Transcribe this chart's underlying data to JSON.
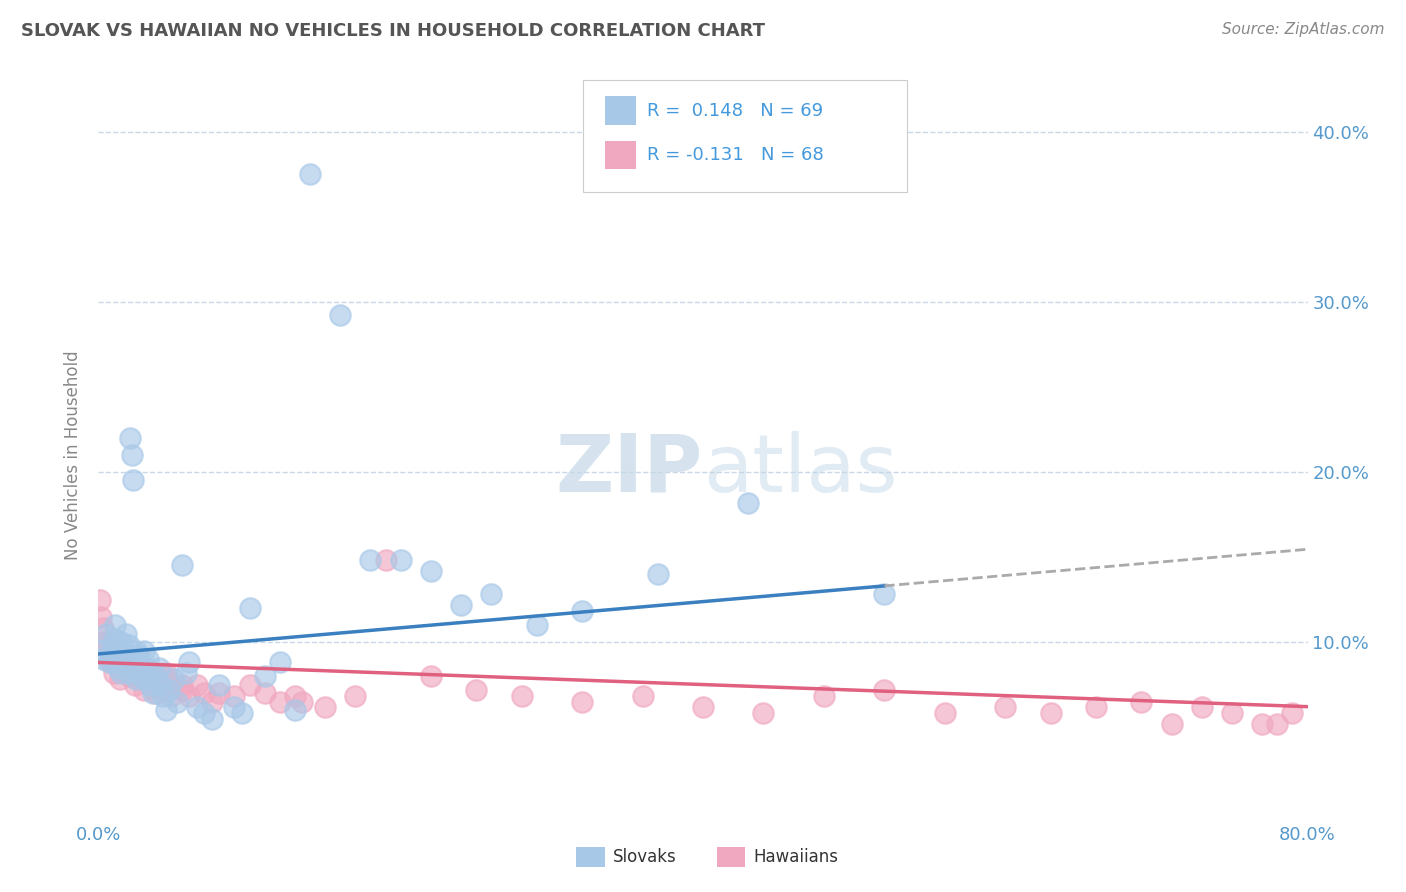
{
  "title": "SLOVAK VS HAWAIIAN NO VEHICLES IN HOUSEHOLD CORRELATION CHART",
  "source": "Source: ZipAtlas.com",
  "ylabel": "No Vehicles in Household",
  "xlim": [
    0.0,
    0.8
  ],
  "ylim": [
    -0.005,
    0.425
  ],
  "yticks": [
    0.0,
    0.1,
    0.2,
    0.3,
    0.4
  ],
  "yticklabels_right": [
    "",
    "10.0%",
    "20.0%",
    "30.0%",
    "40.0%"
  ],
  "xtick_left_label": "0.0%",
  "xtick_right_label": "80.0%",
  "slovak_R": 0.148,
  "slovak_N": 69,
  "hawaiian_R": -0.131,
  "hawaiian_N": 68,
  "blue_scatter_color": "#A8C8E8",
  "pink_scatter_color": "#F0A8C0",
  "blue_line_color": "#3A7FBF",
  "pink_line_color": "#E06080",
  "dashed_line_color": "#AAAAAA",
  "background_color": "#FFFFFF",
  "grid_color": "#C8D8E8",
  "title_color": "#555555",
  "axis_label_color": "#888888",
  "tick_label_color": "#5599CC",
  "legend_text_dark": "#333333",
  "legend_R_color": "#4499DD",
  "watermark_color": "#C5D8E8",
  "slovak_x": [
    0.002,
    0.003,
    0.005,
    0.007,
    0.008,
    0.009,
    0.01,
    0.01,
    0.011,
    0.012,
    0.013,
    0.014,
    0.015,
    0.015,
    0.016,
    0.017,
    0.018,
    0.019,
    0.02,
    0.02,
    0.021,
    0.022,
    0.023,
    0.024,
    0.025,
    0.025,
    0.026,
    0.027,
    0.028,
    0.03,
    0.03,
    0.032,
    0.033,
    0.034,
    0.035,
    0.036,
    0.038,
    0.04,
    0.041,
    0.043,
    0.045,
    0.047,
    0.05,
    0.052,
    0.055,
    0.058,
    0.06,
    0.065,
    0.07,
    0.075,
    0.08,
    0.09,
    0.095,
    0.1,
    0.11,
    0.12,
    0.13,
    0.14,
    0.16,
    0.18,
    0.2,
    0.22,
    0.24,
    0.26,
    0.29,
    0.32,
    0.37,
    0.43,
    0.52
  ],
  "slovak_y": [
    0.095,
    0.09,
    0.105,
    0.088,
    0.092,
    0.098,
    0.102,
    0.088,
    0.11,
    0.095,
    0.085,
    0.092,
    0.1,
    0.082,
    0.09,
    0.095,
    0.105,
    0.088,
    0.098,
    0.082,
    0.22,
    0.21,
    0.195,
    0.085,
    0.095,
    0.078,
    0.088,
    0.092,
    0.08,
    0.095,
    0.078,
    0.085,
    0.09,
    0.075,
    0.082,
    0.07,
    0.08,
    0.085,
    0.075,
    0.068,
    0.06,
    0.072,
    0.078,
    0.065,
    0.145,
    0.082,
    0.088,
    0.062,
    0.058,
    0.055,
    0.075,
    0.062,
    0.058,
    0.12,
    0.08,
    0.088,
    0.06,
    0.375,
    0.292,
    0.148,
    0.148,
    0.142,
    0.122,
    0.128,
    0.11,
    0.118,
    0.14,
    0.182,
    0.128
  ],
  "hawaiian_x": [
    0.001,
    0.002,
    0.004,
    0.006,
    0.008,
    0.01,
    0.012,
    0.014,
    0.016,
    0.018,
    0.02,
    0.022,
    0.024,
    0.026,
    0.028,
    0.03,
    0.032,
    0.034,
    0.036,
    0.038,
    0.04,
    0.042,
    0.044,
    0.046,
    0.048,
    0.05,
    0.055,
    0.06,
    0.065,
    0.07,
    0.075,
    0.08,
    0.09,
    0.1,
    0.11,
    0.12,
    0.13,
    0.15,
    0.17,
    0.19,
    0.22,
    0.25,
    0.28,
    0.32,
    0.36,
    0.4,
    0.44,
    0.48,
    0.52,
    0.56,
    0.6,
    0.63,
    0.66,
    0.69,
    0.71,
    0.73,
    0.75,
    0.77,
    0.78,
    0.79,
    0.003,
    0.007,
    0.015,
    0.025,
    0.035,
    0.045,
    0.055,
    0.135
  ],
  "hawaiian_y": [
    0.125,
    0.115,
    0.1,
    0.092,
    0.088,
    0.082,
    0.092,
    0.078,
    0.085,
    0.09,
    0.08,
    0.085,
    0.075,
    0.082,
    0.078,
    0.072,
    0.08,
    0.076,
    0.082,
    0.07,
    0.078,
    0.072,
    0.08,
    0.076,
    0.068,
    0.075,
    0.072,
    0.068,
    0.075,
    0.07,
    0.065,
    0.07,
    0.068,
    0.075,
    0.07,
    0.065,
    0.068,
    0.062,
    0.068,
    0.148,
    0.08,
    0.072,
    0.068,
    0.065,
    0.068,
    0.062,
    0.058,
    0.068,
    0.072,
    0.058,
    0.062,
    0.058,
    0.062,
    0.065,
    0.052,
    0.062,
    0.058,
    0.052,
    0.052,
    0.058,
    0.108,
    0.098,
    0.088,
    0.08,
    0.078,
    0.082,
    0.075,
    0.065
  ],
  "blue_line_x_end": 0.52,
  "blue_line_y_start": 0.093,
  "blue_line_y_end": 0.133,
  "pink_line_y_start": 0.088,
  "pink_line_y_end": 0.062
}
